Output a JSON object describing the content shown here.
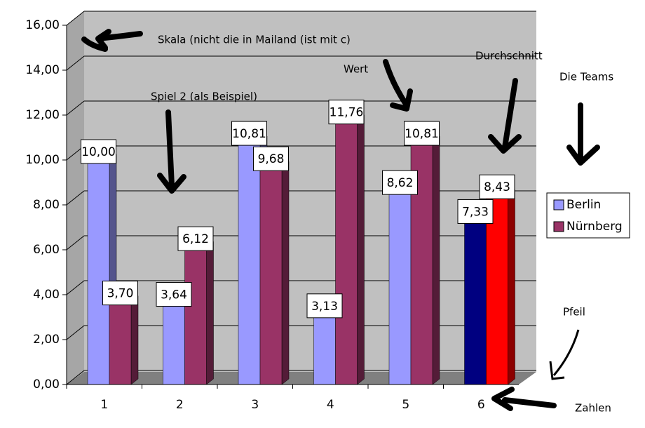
{
  "chart_data": {
    "type": "bar3d",
    "categories": [
      "1",
      "2",
      "3",
      "4",
      "5",
      "6"
    ],
    "series": [
      {
        "name": "Berlin",
        "color": "#9999ff",
        "colors": [
          "#9999ff",
          "#9999ff",
          "#9999ff",
          "#9999ff",
          "#9999ff",
          "#000080"
        ],
        "values": [
          10.0,
          3.64,
          10.81,
          3.13,
          8.62,
          7.33
        ],
        "value_labels": [
          "10,00",
          "3,64",
          "10,81",
          "3,13",
          "8,62",
          "7,33"
        ]
      },
      {
        "name": "Nürnberg",
        "color": "#993366",
        "colors": [
          "#993366",
          "#993366",
          "#993366",
          "#993366",
          "#993366",
          "#ff0000"
        ],
        "values": [
          3.7,
          6.12,
          9.68,
          11.76,
          10.81,
          8.43
        ],
        "value_labels": [
          "3,70",
          "6,12",
          "9,68",
          "11,76",
          "10,81",
          "8,43"
        ]
      }
    ],
    "ylim": [
      0,
      16
    ],
    "yticks": [
      {
        "value": 0,
        "label": "0,00"
      },
      {
        "value": 2,
        "label": "2,00"
      },
      {
        "value": 4,
        "label": "4,00"
      },
      {
        "value": 6,
        "label": "6,00"
      },
      {
        "value": 8,
        "label": "8,00"
      },
      {
        "value": 10,
        "label": "10,00"
      },
      {
        "value": 12,
        "label": "12,00"
      },
      {
        "value": 14,
        "label": "14,00"
      },
      {
        "value": 16,
        "label": "16,00"
      }
    ],
    "grid": true,
    "legend": "right",
    "annotations": [
      "Skala (nicht die in Mailand (ist mit c)",
      "Spiel 2 (als Beispiel)",
      "Wert",
      "Durchschnitt",
      "Die Teams",
      "Pfeil",
      "Zahlen"
    ]
  }
}
